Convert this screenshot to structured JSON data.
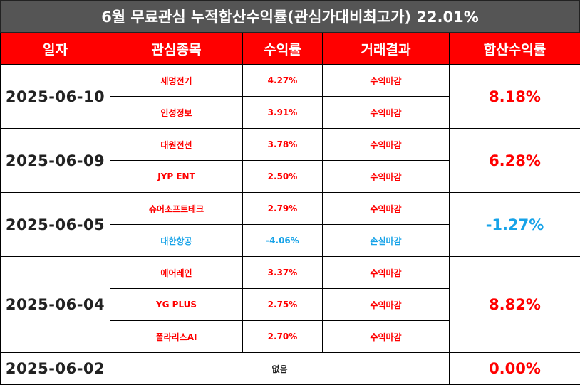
{
  "title": "6월 무료관심 누적합산수익률(관심가대비최고가) 22.01%",
  "headers": [
    "일자",
    "관심종목",
    "수익률",
    "거래결과",
    "합산수익률"
  ],
  "groups": [
    {
      "date": "2025-06-10",
      "total": "8.18%",
      "total_color": "#ff0000",
      "rows": [
        {
          "name": "세명전기",
          "rate": "4.27%",
          "result": "수익마감",
          "color": "#ff0000"
        },
        {
          "name": "인성정보",
          "rate": "3.91%",
          "result": "수익마감",
          "color": "#ff0000"
        }
      ]
    },
    {
      "date": "2025-06-09",
      "total": "6.28%",
      "total_color": "#ff0000",
      "rows": [
        {
          "name": "대원전선",
          "rate": "3.78%",
          "result": "수익마감",
          "color": "#ff0000"
        },
        {
          "name": "JYP ENT",
          "rate": "2.50%",
          "result": "수익마감",
          "color": "#ff0000"
        }
      ]
    },
    {
      "date": "2025-06-05",
      "total": "-1.27%",
      "total_color": "#17a3e8",
      "rows": [
        {
          "name": "슈어소프트테크",
          "rate": "2.79%",
          "result": "수익마감",
          "color": "#ff0000"
        },
        {
          "name": "대한항공",
          "rate": "-4.06%",
          "result": "손실마감",
          "color": "#17a3e8"
        }
      ]
    },
    {
      "date": "2025-06-04",
      "total": "8.82%",
      "total_color": "#ff0000",
      "rows": [
        {
          "name": "에어레인",
          "rate": "3.37%",
          "result": "수익마감",
          "color": "#ff0000"
        },
        {
          "name": "YG PLUS",
          "rate": "2.75%",
          "result": "수익마감",
          "color": "#ff0000"
        },
        {
          "name": "폴라리스AI",
          "rate": "2.70%",
          "result": "수익마감",
          "color": "#ff0000"
        }
      ]
    },
    {
      "date": "2025-06-02",
      "total": "0.00%",
      "total_color": "#ff0000",
      "none_label": "없음",
      "rows": []
    }
  ]
}
